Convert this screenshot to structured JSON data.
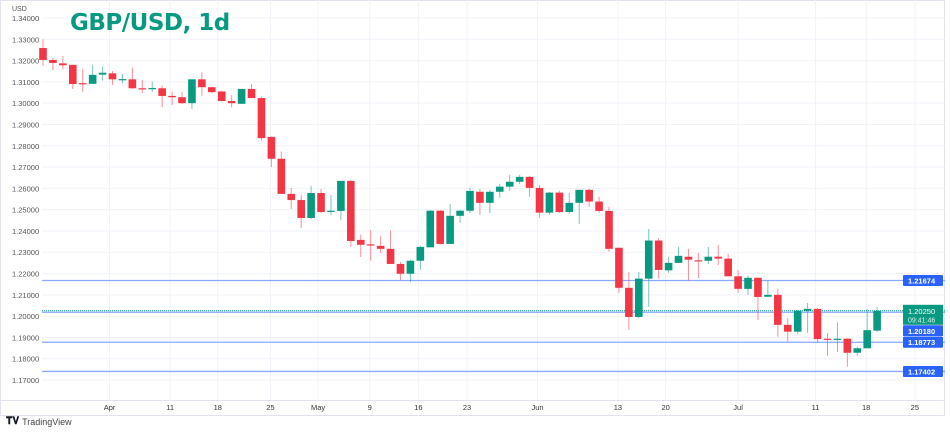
{
  "chart_data": {
    "type": "candlestick",
    "title": "GBP/USD, 1d",
    "currency_label": "USD",
    "ylim": [
      1.17,
      1.34
    ],
    "y_ticks": [
      "1.34000",
      "1.33000",
      "1.32000",
      "1.31000",
      "1.30000",
      "1.29000",
      "1.28000",
      "1.27000",
      "1.26000",
      "1.25000",
      "1.24000",
      "1.23000",
      "1.22000",
      "1.21000",
      "1.20000",
      "1.19000",
      "1.18000",
      "1.17000"
    ],
    "x_ticks": [
      "Apr",
      "11",
      "18",
      "25",
      "May",
      "9",
      "16",
      "23",
      "Jun",
      "13",
      "20",
      "Jul",
      "11",
      "18",
      "25"
    ],
    "grid": true,
    "colors": {
      "up": "#089981",
      "down": "#f23645",
      "level": "#2962ff",
      "title": "#089981"
    },
    "candles": [
      [
        1.3259,
        1.33,
        1.3175,
        1.3203
      ],
      [
        1.3203,
        1.3212,
        1.3156,
        1.3189
      ],
      [
        1.3187,
        1.3222,
        1.3159,
        1.3178
      ],
      [
        1.318,
        1.3181,
        1.3067,
        1.309
      ],
      [
        1.3094,
        1.316,
        1.3053,
        1.3092
      ],
      [
        1.3091,
        1.3181,
        1.309,
        1.3133
      ],
      [
        1.3134,
        1.3172,
        1.3106,
        1.3143
      ],
      [
        1.314,
        1.3151,
        1.3086,
        1.3112
      ],
      [
        1.311,
        1.3137,
        1.3094,
        1.3113
      ],
      [
        1.3112,
        1.3167,
        1.3067,
        1.307
      ],
      [
        1.307,
        1.3109,
        1.3047,
        1.3066
      ],
      [
        1.3066,
        1.3101,
        1.3052,
        1.3071
      ],
      [
        1.307,
        1.3083,
        1.2981,
        1.3034
      ],
      [
        1.3034,
        1.3054,
        1.2992,
        1.3028
      ],
      [
        1.3028,
        1.3052,
        1.2997,
        1.3
      ],
      [
        1.3,
        1.3112,
        1.2973,
        1.3112
      ],
      [
        1.3112,
        1.3145,
        1.3035,
        1.3075
      ],
      [
        1.3075,
        1.3078,
        1.3047,
        1.3052
      ],
      [
        1.3055,
        1.3059,
        1.3008,
        1.301
      ],
      [
        1.301,
        1.3038,
        1.2981,
        1.3
      ],
      [
        1.2997,
        1.3067,
        1.2997,
        1.3067
      ],
      [
        1.3067,
        1.309,
        1.3024,
        1.3024
      ],
      [
        1.3024,
        1.3031,
        1.2824,
        1.2836
      ],
      [
        1.2842,
        1.2843,
        1.27,
        1.2739
      ],
      [
        1.2739,
        1.2773,
        1.2574,
        1.2574
      ],
      [
        1.2574,
        1.2602,
        1.2503,
        1.2545
      ],
      [
        1.2545,
        1.2569,
        1.2414,
        1.2461
      ],
      [
        1.2461,
        1.2612,
        1.2456,
        1.2578
      ],
      [
        1.2578,
        1.2597,
        1.2484,
        1.2489
      ],
      [
        1.2492,
        1.2569,
        1.2475,
        1.2495
      ],
      [
        1.2494,
        1.2635,
        1.2452,
        1.2635
      ],
      [
        1.2635,
        1.2639,
        1.2325,
        1.2353
      ],
      [
        1.2358,
        1.2382,
        1.2278,
        1.2335
      ],
      [
        1.2337,
        1.2405,
        1.226,
        1.2333
      ],
      [
        1.233,
        1.2377,
        1.2296,
        1.2316
      ],
      [
        1.2316,
        1.2403,
        1.2245,
        1.2245
      ],
      [
        1.2245,
        1.2255,
        1.217,
        1.2199
      ],
      [
        1.2199,
        1.2264,
        1.216,
        1.226
      ],
      [
        1.226,
        1.233,
        1.2217,
        1.2325
      ],
      [
        1.2323,
        1.2499,
        1.2323,
        1.2495
      ],
      [
        1.2495,
        1.2499,
        1.2335,
        1.2339
      ],
      [
        1.2339,
        1.2527,
        1.2339,
        1.2471
      ],
      [
        1.2471,
        1.2499,
        1.2438,
        1.2495
      ],
      [
        1.2495,
        1.2602,
        1.2484,
        1.2588
      ],
      [
        1.2584,
        1.2597,
        1.2475,
        1.2532
      ],
      [
        1.2532,
        1.2593,
        1.2484,
        1.2584
      ],
      [
        1.2584,
        1.2621,
        1.2555,
        1.2608
      ],
      [
        1.2608,
        1.2664,
        1.2588,
        1.2631
      ],
      [
        1.2631,
        1.2664,
        1.2621,
        1.2654
      ],
      [
        1.2654,
        1.2659,
        1.256,
        1.2602
      ],
      [
        1.2602,
        1.2616,
        1.2461,
        1.2486
      ],
      [
        1.2486,
        1.2584,
        1.2475,
        1.258
      ],
      [
        1.258,
        1.2589,
        1.2484,
        1.2489
      ],
      [
        1.2489,
        1.2578,
        1.248,
        1.2532
      ],
      [
        1.2532,
        1.2593,
        1.2433,
        1.2593
      ],
      [
        1.2593,
        1.2598,
        1.2513,
        1.2538
      ],
      [
        1.2538,
        1.256,
        1.2484,
        1.2494
      ],
      [
        1.2494,
        1.2513,
        1.2302,
        1.2316
      ],
      [
        1.2321,
        1.2321,
        1.2109,
        1.2133
      ],
      [
        1.2133,
        1.2208,
        1.1935,
        1.1996
      ],
      [
        1.1996,
        1.2208,
        1.1991,
        1.2176
      ],
      [
        1.2176,
        1.2409,
        1.2044,
        1.2355
      ],
      [
        1.2355,
        1.2367,
        1.2176,
        1.2217
      ],
      [
        1.2215,
        1.2279,
        1.2203,
        1.225
      ],
      [
        1.225,
        1.2325,
        1.225,
        1.2283
      ],
      [
        1.2279,
        1.2316,
        1.2167,
        1.2265
      ],
      [
        1.2262,
        1.2297,
        1.2179,
        1.226
      ],
      [
        1.226,
        1.2325,
        1.2245,
        1.2279
      ],
      [
        1.2279,
        1.2335,
        1.224,
        1.227
      ],
      [
        1.227,
        1.2293,
        1.2187,
        1.2187
      ],
      [
        1.2187,
        1.2217,
        1.2109,
        1.2128
      ],
      [
        1.2128,
        1.219,
        1.21,
        1.218
      ],
      [
        1.218,
        1.218,
        1.1982,
        1.209
      ],
      [
        1.2091,
        1.2166,
        1.209,
        1.21
      ],
      [
        1.21,
        1.2128,
        1.1903,
        1.1959
      ],
      [
        1.1959,
        1.1991,
        1.188,
        1.1927
      ],
      [
        1.1927,
        1.203,
        1.1917,
        1.2025
      ],
      [
        1.2025,
        1.2062,
        1.1921,
        1.2034
      ],
      [
        1.2034,
        1.2038,
        1.1875,
        1.1892
      ],
      [
        1.1894,
        1.1921,
        1.1813,
        1.1891
      ],
      [
        1.1891,
        1.197,
        1.1832,
        1.1894
      ],
      [
        1.1894,
        1.1896,
        1.1762,
        1.1828
      ],
      [
        1.1828,
        1.1857,
        1.1813,
        1.1849
      ],
      [
        1.1849,
        1.2034,
        1.1849,
        1.1934
      ],
      [
        1.1932,
        1.2043,
        1.1926,
        1.2025
      ]
    ],
    "candle_fields": [
      "open",
      "high",
      "low",
      "close"
    ],
    "levels": [
      {
        "label": "1.21674",
        "value": 1.21674
      },
      {
        "label": "1.20180",
        "value": 1.2018
      },
      {
        "label": "1.18773",
        "value": 1.18773
      },
      {
        "label": "1.17402",
        "value": 1.17402
      }
    ],
    "current_price": {
      "label": "1.20250",
      "value": 1.2025,
      "countdown": "09:41:46"
    }
  },
  "footer": {
    "brand": "TradingView"
  }
}
